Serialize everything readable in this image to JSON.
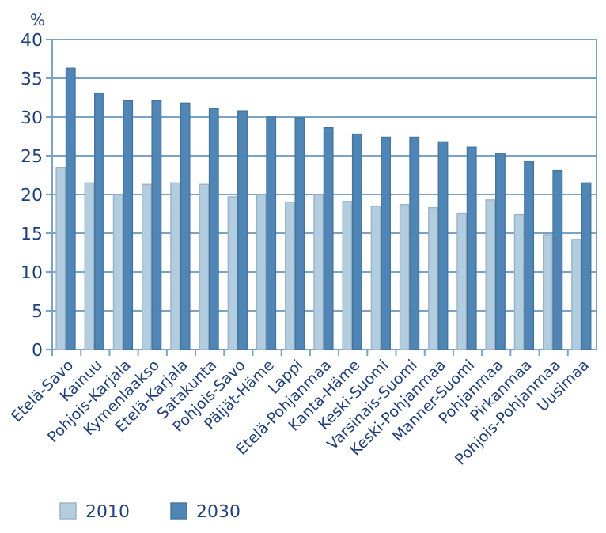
{
  "chart_data": {
    "type": "bar",
    "ylabel": "%",
    "categories": [
      "Etelä-Savo",
      "Kainuu",
      "Pohjois-Karjala",
      "Kymenlaakso",
      "Etelä-Karjala",
      "Satakunta",
      "Pohjois-Savo",
      "Päijät-Häme",
      "Lappi",
      "Etelä-Pohjanmaa",
      "Kanta-Häme",
      "Keski-Suomi",
      "Varsinais-Suomi",
      "Keski-Pohjanmaa",
      "Manner-Suomi",
      "Pohjanmaa",
      "Pirkanmaa",
      "Pohjois-Pohjanmaa",
      "Uusimaa"
    ],
    "series": [
      {
        "name": "2010",
        "color": "#b3cde0",
        "values": [
          23.5,
          21.5,
          20,
          21.3,
          21.5,
          21.3,
          19.7,
          20,
          19,
          20,
          19.1,
          18.5,
          18.7,
          18.3,
          17.6,
          19.3,
          17.4,
          14.8,
          14.2
        ]
      },
      {
        "name": "2030",
        "color": "#4f86b5",
        "values": [
          36.3,
          33.1,
          32.1,
          32.1,
          31.8,
          31.1,
          30.8,
          30,
          29.9,
          28.6,
          27.8,
          27.4,
          27.4,
          26.8,
          26.1,
          25.3,
          24.3,
          23.1,
          21.5
        ]
      }
    ],
    "ylim": [
      0,
      40
    ],
    "yticks": [
      0,
      5,
      10,
      15,
      20,
      25,
      30,
      35,
      40
    ],
    "grid": "y",
    "legend": "bottom left"
  }
}
